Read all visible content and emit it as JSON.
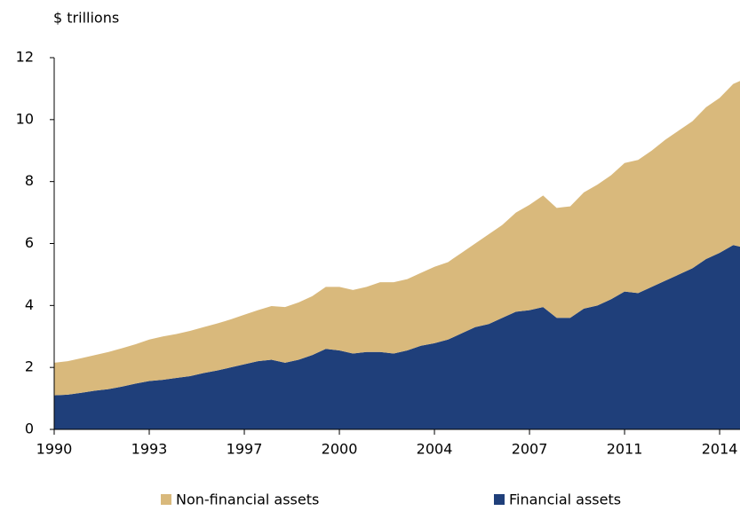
{
  "chart_data": {
    "type": "area",
    "stacked": true,
    "y_label": "$ trillions",
    "x": [
      1990,
      1990.5,
      1991,
      1991.5,
      1992,
      1992.5,
      1993,
      1993.5,
      1994,
      1994.5,
      1995,
      1995.5,
      1996,
      1996.5,
      1997,
      1997.5,
      1998,
      1998.5,
      1999,
      1999.5,
      2000,
      2000.5,
      2001,
      2001.5,
      2002,
      2002.5,
      2003,
      2003.5,
      2004,
      2004.5,
      2005,
      2005.5,
      2006,
      2006.5,
      2007,
      2007.5,
      2008,
      2008.5,
      2009,
      2009.5,
      2010,
      2010.5,
      2011,
      2011.5,
      2012,
      2012.5,
      2013,
      2013.5,
      2014,
      2014.5,
      2015,
      2015.25
    ],
    "series": [
      {
        "name": "Non-financial assets",
        "color": "#d9b97c",
        "values": [
          1.05,
          1.08,
          1.12,
          1.15,
          1.2,
          1.24,
          1.27,
          1.34,
          1.4,
          1.42,
          1.46,
          1.48,
          1.52,
          1.55,
          1.6,
          1.65,
          1.73,
          1.8,
          1.85,
          1.9,
          2.0,
          2.05,
          2.05,
          2.1,
          2.25,
          2.3,
          2.3,
          2.35,
          2.47,
          2.5,
          2.6,
          2.7,
          2.9,
          3.0,
          3.2,
          3.4,
          3.6,
          3.55,
          3.6,
          3.75,
          3.9,
          4.0,
          4.15,
          4.3,
          4.4,
          4.55,
          4.65,
          4.75,
          4.9,
          5.0,
          5.2,
          5.35
        ]
      },
      {
        "name": "Financial assets",
        "color": "#1f3f7a",
        "values": [
          1.1,
          1.12,
          1.18,
          1.25,
          1.3,
          1.38,
          1.48,
          1.56,
          1.6,
          1.66,
          1.72,
          1.82,
          1.9,
          2.0,
          2.1,
          2.2,
          2.25,
          2.15,
          2.25,
          2.4,
          2.6,
          2.55,
          2.45,
          2.5,
          2.5,
          2.45,
          2.55,
          2.7,
          2.78,
          2.9,
          3.1,
          3.3,
          3.4,
          3.6,
          3.8,
          3.85,
          3.95,
          3.6,
          3.6,
          3.9,
          4.0,
          4.2,
          4.45,
          4.4,
          4.6,
          4.8,
          5.0,
          5.2,
          5.5,
          5.7,
          5.95,
          5.9
        ]
      }
    ],
    "xlim": [
      1990,
      2015.25
    ],
    "xticks": [
      1990,
      {
        "value": 1993.5,
        "label": "1993"
      },
      1997,
      {
        "value": 2000.5,
        "label": "2000"
      },
      2004,
      {
        "value": 2007.5,
        "label": "2007"
      },
      2011,
      {
        "value": 2014.5,
        "label": "2014"
      }
    ],
    "ylim": [
      0,
      12
    ],
    "yticks": [
      0,
      2,
      4,
      6,
      8,
      10,
      12
    ],
    "legend": "bottom"
  }
}
